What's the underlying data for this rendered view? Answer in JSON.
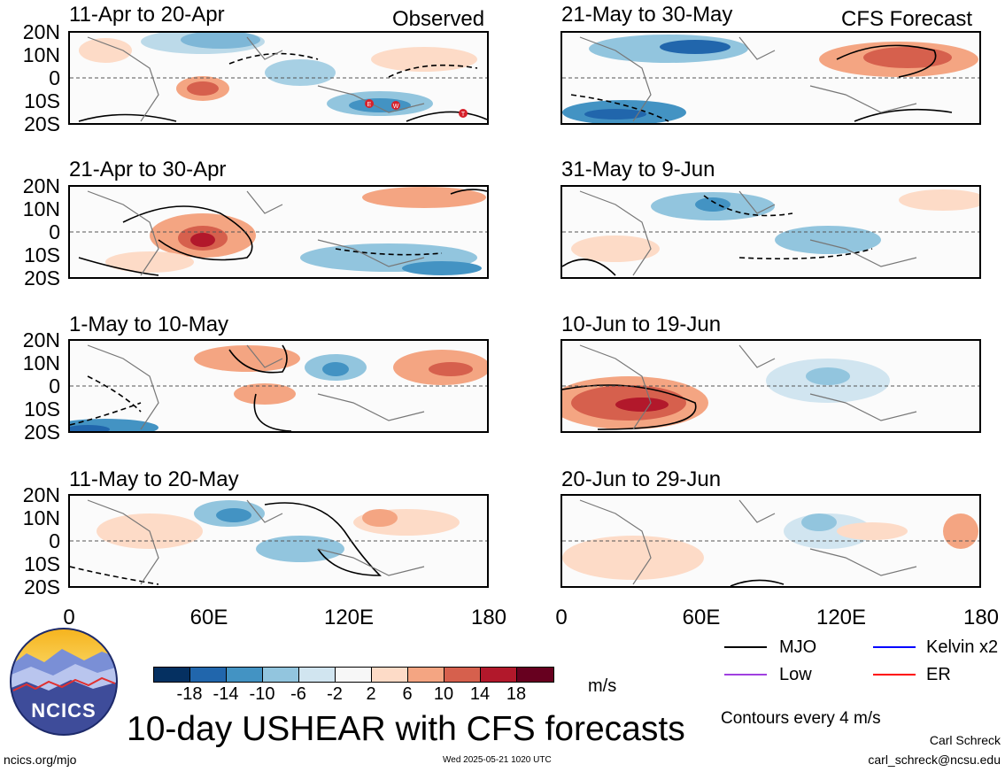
{
  "header": {
    "left_label": "Observed",
    "right_label": "CFS Forecast"
  },
  "panels": [
    {
      "title": "11-Apr to 20-Apr"
    },
    {
      "title": "21-Apr to 30-Apr"
    },
    {
      "title": "1-May to 10-May"
    },
    {
      "title": "11-May to 20-May"
    },
    {
      "title": "21-May to 30-May"
    },
    {
      "title": "31-May to 9-Jun"
    },
    {
      "title": "10-Jun to 19-Jun"
    },
    {
      "title": "20-Jun to 29-Jun"
    }
  ],
  "y_ticks": [
    "20N",
    "10N",
    "0",
    "10S",
    "20S"
  ],
  "x_ticks": [
    "0",
    "60E",
    "120E",
    "180"
  ],
  "storm_markers": [
    "E",
    "W",
    "T"
  ],
  "colorbar": {
    "labels": [
      "-18",
      "-14",
      "-10",
      "-6",
      "-2",
      "2",
      "6",
      "10",
      "14",
      "18"
    ],
    "colors": [
      "#053061",
      "#2166ac",
      "#4393c3",
      "#92c5de",
      "#d1e5f0",
      "#f7f7f7",
      "#fddbc7",
      "#f4a582",
      "#d6604d",
      "#b2182b",
      "#67001f"
    ],
    "unit": "m/s"
  },
  "legend": {
    "items": [
      {
        "label": "MJO",
        "color": "#000000"
      },
      {
        "label": "Kelvin x2",
        "color": "#0000ff"
      },
      {
        "label": "Low",
        "color": "#a040e0"
      },
      {
        "label": "ER",
        "color": "#ff0000"
      }
    ],
    "note": "Contours every 4 m/s"
  },
  "logo": {
    "text": "NCICS"
  },
  "footer": {
    "main_title": "10-day USHEAR with CFS forecasts",
    "url": "ncics.org/mjo",
    "timestamp": "Wed 2025-05-21 1020 UTC",
    "author": "Carl Schreck",
    "email": "carl_schreck@ncsu.edu"
  }
}
